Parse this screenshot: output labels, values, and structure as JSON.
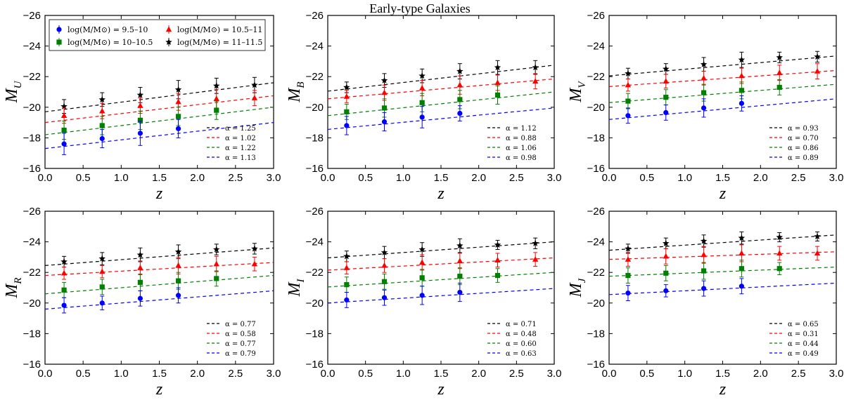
{
  "figure": {
    "title": "Early-type Galaxies"
  },
  "colors": {
    "9.5-10": "#0000ff",
    "10-10.5": "#008000",
    "10.5-11": "#ff0000",
    "11-11.5": "#000000"
  },
  "legend": {
    "placement": "upper-left of first panel",
    "entries": [
      {
        "key": "9.5-10",
        "label": "log(M/M⊙) = 9.5–10",
        "marker": "circle"
      },
      {
        "key": "10-10.5",
        "label": "log(M/M⊙) = 10–10.5",
        "marker": "square"
      },
      {
        "key": "10.5-11",
        "label": "log(M/M⊙) = 10.5–11",
        "marker": "triangle"
      },
      {
        "key": "11-11.5",
        "label": "log(M/M⊙) = 11–11.5",
        "marker": "star"
      }
    ]
  },
  "chart_data": [
    {
      "type": "scatter",
      "band": "U",
      "ylabel": "M",
      "ylabel_sub": "U",
      "xlabel": "z",
      "xlim": [
        0,
        3
      ],
      "ylim": [
        -16,
        -26
      ],
      "xticks": [
        "0.0",
        "0.5",
        "1.0",
        "1.5",
        "2.0",
        "2.5",
        "3.0"
      ],
      "yticks": [
        "−26",
        "−24",
        "−22",
        "−20",
        "−18",
        "−16"
      ],
      "x": [
        0.25,
        0.75,
        1.25,
        1.75,
        2.25,
        2.75
      ],
      "series": [
        {
          "key": "11-11.5",
          "y": [
            -20.05,
            -20.5,
            -20.8,
            -21.15,
            -21.4,
            -21.45
          ],
          "err": [
            0.45,
            0.45,
            0.5,
            0.6,
            0.5,
            0.5
          ],
          "fit": [
            -19.7,
            -21.6
          ],
          "alpha": "α = 1.25"
        },
        {
          "key": "10.5-11",
          "y": [
            -19.45,
            -19.75,
            -20.1,
            -20.35,
            -20.55,
            -20.6
          ],
          "err": [
            0.5,
            0.5,
            0.5,
            0.55,
            0.6,
            0.5
          ],
          "fit": [
            -19.0,
            -20.75
          ],
          "alpha": "α = 1.02"
        },
        {
          "key": "10-10.5",
          "y": [
            -18.5,
            -18.8,
            -19.15,
            -19.4,
            -19.8,
            null
          ],
          "err": [
            0.6,
            0.6,
            0.6,
            0.6,
            0.6,
            0
          ],
          "fit": [
            -18.2,
            -20.0
          ],
          "alpha": "α = 1.22"
        },
        {
          "key": "9.5-10",
          "y": [
            -17.6,
            -17.95,
            -18.3,
            -18.6,
            null,
            null
          ],
          "err": [
            0.7,
            0.6,
            0.8,
            0.6,
            0,
            0
          ],
          "fit": [
            -17.3,
            -19.0
          ],
          "alpha": "α = 1.13"
        }
      ]
    },
    {
      "type": "scatter",
      "band": "B",
      "ylabel": "M",
      "ylabel_sub": "B",
      "xlabel": "z",
      "xlim": [
        0,
        3
      ],
      "ylim": [
        -16,
        -26
      ],
      "xticks": [
        "0.0",
        "0.5",
        "1.0",
        "1.5",
        "2.0",
        "2.5",
        "3.0"
      ],
      "yticks": [
        "−26",
        "−24",
        "−22",
        "−20",
        "−18",
        "−16"
      ],
      "x": [
        0.25,
        0.75,
        1.25,
        1.75,
        2.25,
        2.75
      ],
      "series": [
        {
          "key": "11-11.5",
          "y": [
            -21.3,
            -21.75,
            -22.05,
            -22.35,
            -22.6,
            -22.6
          ],
          "err": [
            0.35,
            0.45,
            0.45,
            0.5,
            0.45,
            0.45
          ],
          "fit": [
            -21.05,
            -22.75
          ],
          "alpha": "α = 1.12"
        },
        {
          "key": "10.5-11",
          "y": [
            -20.7,
            -20.95,
            -21.25,
            -21.45,
            -21.6,
            -21.7
          ],
          "err": [
            0.4,
            0.5,
            0.5,
            0.6,
            0.5,
            0.5
          ],
          "fit": [
            -20.55,
            -21.85
          ],
          "alpha": "α = 0.88"
        },
        {
          "key": "10-10.5",
          "y": [
            -19.7,
            -19.95,
            -20.3,
            -20.5,
            -20.8,
            null
          ],
          "err": [
            0.5,
            0.6,
            0.6,
            0.6,
            0.6,
            0
          ],
          "fit": [
            -19.45,
            -21.0
          ],
          "alpha": "α = 1.06"
        },
        {
          "key": "9.5-10",
          "y": [
            -18.8,
            -19.05,
            -19.35,
            -19.6,
            null,
            null
          ],
          "err": [
            0.6,
            0.6,
            0.7,
            0.5,
            0,
            0
          ],
          "fit": [
            -18.55,
            -19.95
          ],
          "alpha": "α = 0.98"
        }
      ]
    },
    {
      "type": "scatter",
      "band": "V",
      "ylabel": "M",
      "ylabel_sub": "V",
      "xlabel": "z",
      "xlim": [
        0,
        3
      ],
      "ylim": [
        -16,
        -26
      ],
      "xticks": [
        "0.0",
        "0.5",
        "1.0",
        "1.5",
        "2.0",
        "2.5",
        "3.0"
      ],
      "yticks": [
        "−26",
        "−24",
        "−22",
        "−20",
        "−18",
        "−16"
      ],
      "x": [
        0.25,
        0.75,
        1.25,
        1.75,
        2.25,
        2.75
      ],
      "series": [
        {
          "key": "11-11.5",
          "y": [
            -22.2,
            -22.5,
            -22.8,
            -23.1,
            -23.25,
            -23.3
          ],
          "err": [
            0.35,
            0.35,
            0.45,
            0.5,
            0.35,
            0.35
          ],
          "fit": [
            -22.05,
            -23.35
          ],
          "alpha": "α = 0.93"
        },
        {
          "key": "10.5-11",
          "y": [
            -21.45,
            -21.7,
            -21.9,
            -22.05,
            -22.25,
            -22.35
          ],
          "err": [
            0.4,
            0.45,
            0.45,
            0.5,
            0.5,
            0.5
          ],
          "fit": [
            -21.35,
            -22.4
          ],
          "alpha": "α = 0.70"
        },
        {
          "key": "10-10.5",
          "y": [
            -20.4,
            -20.65,
            -20.95,
            -21.1,
            -21.3,
            null
          ],
          "err": [
            0.5,
            0.5,
            0.55,
            0.55,
            0.5,
            0
          ],
          "fit": [
            -20.3,
            -21.5
          ],
          "alpha": "α = 0.86"
        },
        {
          "key": "9.5-10",
          "y": [
            -19.45,
            -19.65,
            -19.95,
            -20.25,
            null,
            null
          ],
          "err": [
            0.5,
            0.5,
            0.6,
            0.5,
            0,
            0
          ],
          "fit": [
            -19.2,
            -20.55
          ],
          "alpha": "α = 0.89"
        }
      ]
    },
    {
      "type": "scatter",
      "band": "R",
      "ylabel": "M",
      "ylabel_sub": "R",
      "xlabel": "z",
      "xlim": [
        0,
        3
      ],
      "ylim": [
        -16,
        -26
      ],
      "xticks": [
        "0.0",
        "0.5",
        "1.0",
        "1.5",
        "2.0",
        "2.5",
        "3.0"
      ],
      "yticks": [
        "−26",
        "−24",
        "−22",
        "−20",
        "−18",
        "−16"
      ],
      "x": [
        0.25,
        0.75,
        1.25,
        1.75,
        2.25,
        2.75
      ],
      "series": [
        {
          "key": "11-11.5",
          "y": [
            -22.7,
            -22.9,
            -23.15,
            -23.35,
            -23.5,
            -23.55
          ],
          "err": [
            0.35,
            0.4,
            0.45,
            0.45,
            0.35,
            0.35
          ],
          "fit": [
            -22.45,
            -23.6
          ],
          "alpha": "α = 0.77"
        },
        {
          "key": "10.5-11",
          "y": [
            -21.95,
            -22.05,
            -22.3,
            -22.45,
            -22.55,
            -22.55
          ],
          "err": [
            0.4,
            0.4,
            0.45,
            0.55,
            0.5,
            0.45
          ],
          "fit": [
            -21.8,
            -22.65
          ],
          "alpha": "α = 0.58"
        },
        {
          "key": "10-10.5",
          "y": [
            -20.85,
            -21.05,
            -21.35,
            -21.45,
            -21.6,
            null
          ],
          "err": [
            0.5,
            0.5,
            0.55,
            0.55,
            0.5,
            0
          ],
          "fit": [
            -20.6,
            -21.8
          ],
          "alpha": "α = 0.77"
        },
        {
          "key": "9.5-10",
          "y": [
            -19.85,
            -20.0,
            -20.3,
            -20.5,
            null,
            null
          ],
          "err": [
            0.5,
            0.45,
            0.5,
            0.5,
            0,
            0
          ],
          "fit": [
            -19.6,
            -20.8
          ],
          "alpha": "α = 0.79"
        }
      ]
    },
    {
      "type": "scatter",
      "band": "I",
      "ylabel": "M",
      "ylabel_sub": "I",
      "xlabel": "z",
      "xlim": [
        0,
        3
      ],
      "ylim": [
        -16,
        -26
      ],
      "xticks": [
        "0.0",
        "0.5",
        "1.0",
        "1.5",
        "2.0",
        "2.5",
        "3.0"
      ],
      "yticks": [
        "−26",
        "−24",
        "−22",
        "−20",
        "−18",
        "−16"
      ],
      "x": [
        0.25,
        0.75,
        1.25,
        1.75,
        2.25,
        2.75
      ],
      "series": [
        {
          "key": "11-11.5",
          "y": [
            -23.05,
            -23.3,
            -23.5,
            -23.75,
            -23.8,
            -23.9
          ],
          "err": [
            0.35,
            0.4,
            0.45,
            0.45,
            0.3,
            0.35
          ],
          "fit": [
            -22.95,
            -24.0
          ],
          "alpha": "α = 0.71"
        },
        {
          "key": "10.5-11",
          "y": [
            -22.3,
            -22.45,
            -22.65,
            -22.75,
            -22.8,
            -22.85
          ],
          "err": [
            0.4,
            0.45,
            0.5,
            0.5,
            0.45,
            0.45
          ],
          "fit": [
            -22.15,
            -22.95
          ],
          "alpha": "α = 0.48"
        },
        {
          "key": "10-10.5",
          "y": [
            -21.2,
            -21.4,
            -21.65,
            -21.75,
            -21.8,
            null
          ],
          "err": [
            0.5,
            0.5,
            0.55,
            0.55,
            0.45,
            0
          ],
          "fit": [
            -21.05,
            -22.0
          ],
          "alpha": "α = 0.60"
        },
        {
          "key": "9.5-10",
          "y": [
            -20.2,
            -20.35,
            -20.5,
            -20.7,
            null,
            null
          ],
          "err": [
            0.5,
            0.5,
            0.6,
            0.6,
            0,
            0
          ],
          "fit": [
            -20.0,
            -20.95
          ],
          "alpha": "α = 0.63"
        }
      ]
    },
    {
      "type": "scatter",
      "band": "J",
      "ylabel": "M",
      "ylabel_sub": "J",
      "xlabel": "z",
      "xlim": [
        0,
        3
      ],
      "ylim": [
        -16,
        -26
      ],
      "xticks": [
        "0.0",
        "0.5",
        "1.0",
        "1.5",
        "2.0",
        "2.5",
        "3.0"
      ],
      "yticks": [
        "−26",
        "−24",
        "−22",
        "−20",
        "−18",
        "−16"
      ],
      "x": [
        0.25,
        0.75,
        1.25,
        1.75,
        2.25,
        2.75
      ],
      "series": [
        {
          "key": "11-11.5",
          "y": [
            -23.55,
            -23.9,
            -24.05,
            -24.25,
            -24.3,
            -24.35
          ],
          "err": [
            0.3,
            0.35,
            0.4,
            0.4,
            0.3,
            0.3
          ],
          "fit": [
            -23.45,
            -24.45
          ],
          "alpha": "α = 0.65"
        },
        {
          "key": "10.5-11",
          "y": [
            -22.85,
            -23.05,
            -23.15,
            -23.25,
            -23.25,
            -23.25
          ],
          "err": [
            0.45,
            0.5,
            0.55,
            0.55,
            0.45,
            0.45
          ],
          "fit": [
            -22.85,
            -23.35
          ],
          "alpha": "α = 0.31"
        },
        {
          "key": "10-10.5",
          "y": [
            -21.8,
            -21.95,
            -22.1,
            -22.25,
            -22.25,
            null
          ],
          "err": [
            0.5,
            0.5,
            0.55,
            0.55,
            0.4,
            0
          ],
          "fit": [
            -21.75,
            -22.35
          ],
          "alpha": "α = 0.44"
        },
        {
          "key": "9.5-10",
          "y": [
            -20.65,
            -20.8,
            -20.95,
            -21.1,
            null,
            null
          ],
          "err": [
            0.5,
            0.4,
            0.5,
            0.5,
            0,
            0
          ],
          "fit": [
            -20.55,
            -21.3
          ],
          "alpha": "α = 0.49"
        }
      ]
    }
  ]
}
